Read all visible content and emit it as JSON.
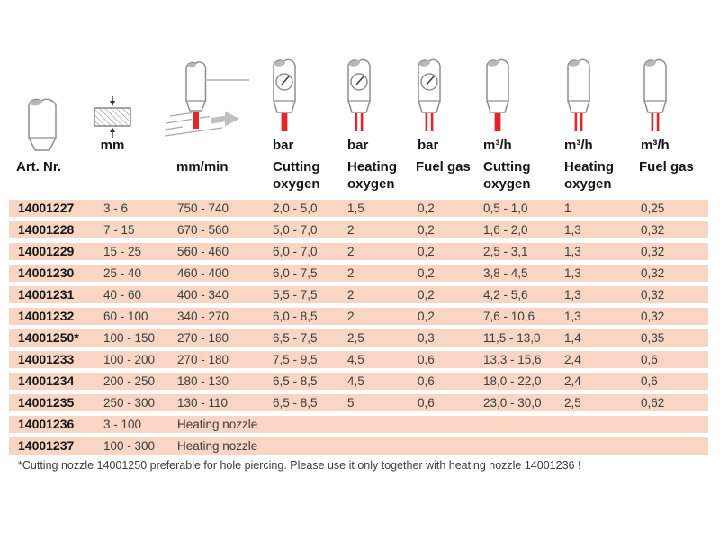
{
  "header": {
    "art_nr": "Art. Nr.",
    "mm": "mm",
    "mm_min": "mm/min",
    "bar": "bar",
    "m3h": "m³/h",
    "cutting_oxygen": "Cutting oxygen",
    "heating_oxygen": "Heating oxygen",
    "fuel_gas": "Fuel gas"
  },
  "icons": {
    "col1": "nozzle-icon",
    "col2": "material-thickness-icon",
    "col3": "cutting-speed-torch-icon",
    "bar_cols": "pressure-gauge-nozzle-icon",
    "m3h_cols": "flow-nozzle-icon"
  },
  "table": {
    "columns": [
      "Art. Nr.",
      "mm",
      "mm/min",
      "bar Cutting oxygen",
      "bar Heating oxygen",
      "bar Fuel gas",
      "m³/h Cutting oxygen",
      "m³/h Heating oxygen",
      "m³/h Fuel gas"
    ],
    "rows": [
      [
        "14001227",
        "3 - 6",
        "750 - 740",
        "2,0 - 5,0",
        "1,5",
        "0,2",
        "0,5 - 1,0",
        "1",
        "0,25"
      ],
      [
        "14001228",
        "7 - 15",
        "670 - 560",
        "5,0 - 7,0",
        "2",
        "0,2",
        "1,6 - 2,0",
        "1,3",
        "0,32"
      ],
      [
        "14001229",
        "15 - 25",
        "560 - 460",
        "6,0 - 7,0",
        "2",
        "0,2",
        "2,5 - 3,1",
        "1,3",
        "0,32"
      ],
      [
        "14001230",
        "25 - 40",
        "460 - 400",
        "6,0 - 7,5",
        "2",
        "0,2",
        "3,8 - 4,5",
        "1,3",
        "0,32"
      ],
      [
        "14001231",
        "40 - 60",
        "400 - 340",
        "5,5 - 7,5",
        "2",
        "0,2",
        "4,2 - 5,6",
        "1,3",
        "0,32"
      ],
      [
        "14001232",
        "60 - 100",
        "340 - 270",
        "6,0 - 8,5",
        "2",
        "0,2",
        "7,6 - 10,6",
        "1,3",
        "0,32"
      ],
      [
        "14001250*",
        "100 - 150",
        "270 - 180",
        "6,5 - 7,5",
        "2,5",
        "0,3",
        "11,5 - 13,0",
        "1,4",
        "0,35"
      ],
      [
        "14001233",
        "100 - 200",
        "270 - 180",
        "7,5 - 9,5",
        "4,5",
        "0,6",
        "13,3 - 15,6",
        "2,4",
        "0,6"
      ],
      [
        "14001234",
        "200 - 250",
        "180 - 130",
        "6,5 - 8,5",
        "4,5",
        "0,6",
        "18,0 - 22,0",
        "2,4",
        "0,6"
      ],
      [
        "14001235",
        "250 - 300",
        "130 - 110",
        "6,5 - 8,5",
        "5",
        "0,6",
        "23,0 - 30,0",
        "2,5",
        "0,62"
      ],
      [
        "14001236",
        "3 - 100",
        "Heating nozzle"
      ],
      [
        "14001237",
        "100 - 300",
        "Heating nozzle"
      ]
    ]
  },
  "footnote": "*Cutting nozzle 14001250 preferable for hole piercing. Please use it only together with heating nozzle 14001236 !",
  "colors": {
    "band": "#f9d6c4",
    "red": "#e52329",
    "gray": "#8e8e8e",
    "text": "#3c3c3c",
    "dark": "#161616"
  }
}
